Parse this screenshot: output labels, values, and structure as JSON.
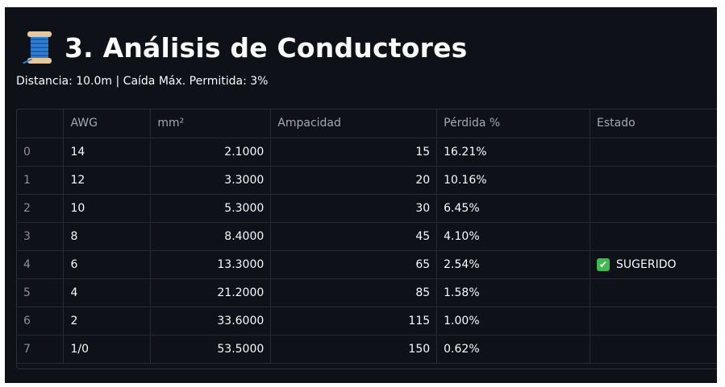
{
  "header": {
    "title": "3. Análisis de Conductores",
    "icon": "thread-spool-icon"
  },
  "subtitle": "Distancia: 10.0m | Caída Máx. Permitida: 3%",
  "table": {
    "columns": [
      "",
      "AWG",
      "mm²",
      "Ampacidad",
      "Pérdida %",
      "Estado"
    ],
    "rows": [
      {
        "index": "0",
        "awg": "14",
        "mm2": "2.1000",
        "ampacidad": "15",
        "perdida": "16.21%",
        "estado": ""
      },
      {
        "index": "1",
        "awg": "12",
        "mm2": "3.3000",
        "ampacidad": "20",
        "perdida": "10.16%",
        "estado": ""
      },
      {
        "index": "2",
        "awg": "10",
        "mm2": "5.3000",
        "ampacidad": "30",
        "perdida": "6.45%",
        "estado": ""
      },
      {
        "index": "3",
        "awg": "8",
        "mm2": "8.4000",
        "ampacidad": "45",
        "perdida": "4.10%",
        "estado": ""
      },
      {
        "index": "4",
        "awg": "6",
        "mm2": "13.3000",
        "ampacidad": "65",
        "perdida": "2.54%",
        "estado": "SUGERIDO",
        "estado_icon": "check-mark-icon"
      },
      {
        "index": "5",
        "awg": "4",
        "mm2": "21.2000",
        "ampacidad": "85",
        "perdida": "1.58%",
        "estado": ""
      },
      {
        "index": "6",
        "awg": "2",
        "mm2": "33.6000",
        "ampacidad": "115",
        "perdida": "1.00%",
        "estado": ""
      },
      {
        "index": "7",
        "awg": "1/0",
        "mm2": "53.5000",
        "ampacidad": "150",
        "perdida": "0.62%",
        "estado": ""
      }
    ]
  },
  "colors": {
    "background": "#0e1117",
    "text": "#fafafa",
    "header_text": "#a3a8b4",
    "check": "#3fb950"
  }
}
